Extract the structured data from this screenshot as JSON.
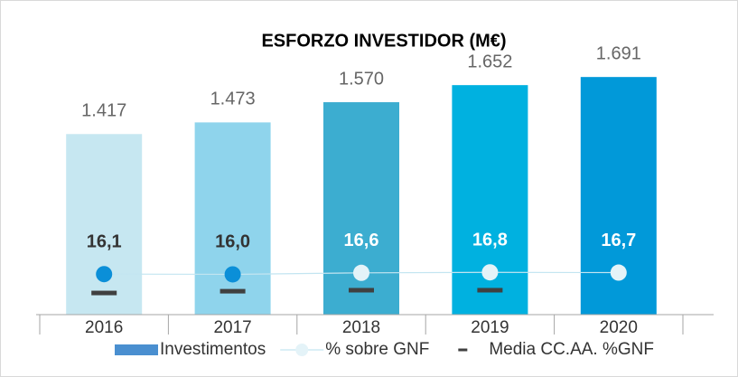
{
  "chart_data": {
    "type": "bar",
    "title": "ESFORZO INVESTIDOR (M€)",
    "categories": [
      "2016",
      "2017",
      "2018",
      "2019",
      "2020"
    ],
    "ylim": [
      550,
      2000
    ],
    "y2lim": [
      0,
      120
    ],
    "series": [
      {
        "name": "Investimentos",
        "type": "bar",
        "color": "#4a8fd0",
        "colors": [
          "#c6e7f1",
          "#8fd4ec",
          "#3cadd0",
          "#00b1e0",
          "#0199d9"
        ],
        "values": [
          1417,
          1473,
          1570,
          1652,
          1691
        ],
        "value_labels": [
          "1.417",
          "1.473",
          "1.570",
          "1.652",
          "1.691"
        ]
      },
      {
        "name": "% sobre GNF",
        "type": "line",
        "axis": "y2",
        "color": "#c3e5f1",
        "marker_colors": [
          "#0b8fd8",
          "#0b8fd8",
          "#e4f3f8",
          "#e4f3f8",
          "#e4f3f8"
        ],
        "value_label_colors": [
          "#333333",
          "#333333",
          "#ffffff",
          "#ffffff",
          "#ffffff"
        ],
        "values": [
          16.1,
          16.0,
          16.6,
          16.8,
          16.7
        ],
        "value_labels": [
          "16,1",
          "16,0",
          "16,6",
          "16,8",
          "16,7"
        ]
      },
      {
        "name": "Media CC.AA. %GNF",
        "type": "dash",
        "axis": "y2",
        "color": "#404040",
        "values": [
          8.6,
          9.3,
          9.7,
          9.7,
          null
        ]
      }
    ]
  }
}
